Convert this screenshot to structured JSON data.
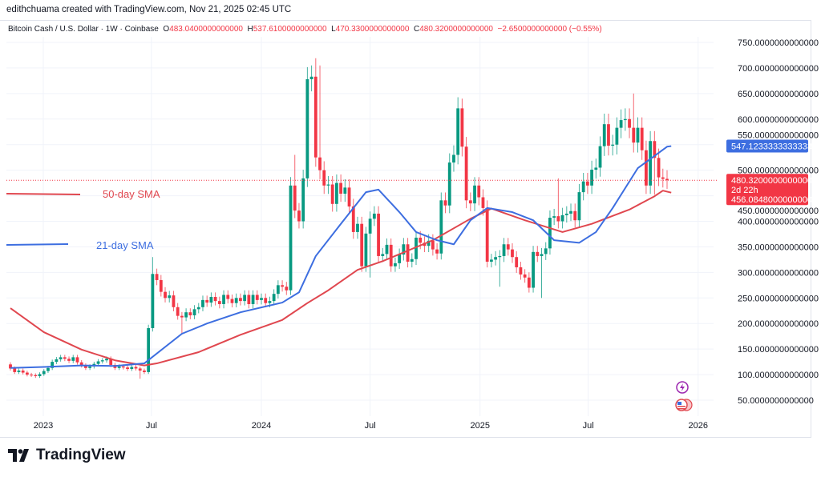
{
  "attribution": "edithchuama created with TradingView.com, Nov 21, 2025 02:45 UTC",
  "legend": {
    "symbol": "Bitcoin Cash / U.S. Dollar · 1W · Coinbase",
    "o_label": "O",
    "open": "483.0400000000000",
    "h_label": "H",
    "high": "537.6100000000000",
    "l_label": "L",
    "low": "470.3300000000000",
    "c_label": "C",
    "close": "480.3200000000000",
    "change": "−2.6500000000000 (−0.55%)"
  },
  "annotations": {
    "sma50": "50-day SMA",
    "sma21": "21-day SMA"
  },
  "price_labels": {
    "sma21": "547.1233333333333",
    "last": "480.3200000000000",
    "countdown": "2d 22h",
    "sma50": "456.0848000000000"
  },
  "logo": "TradingView",
  "colors": {
    "up": "#089981",
    "down": "#f23645",
    "sma50": "#e0474f",
    "sma21": "#3d6ee0",
    "grid": "#f0f3fa"
  },
  "icons": [
    "lightning-event-icon",
    "us-flag-event-icon",
    "tradingview-logo-icon"
  ],
  "chart_data": {
    "type": "candlestick",
    "title": "Bitcoin Cash / U.S. Dollar · 1W · Coinbase",
    "interval": "1W",
    "first_candle": "2022-11-07",
    "first_open": 120,
    "close": [
      112,
      105,
      108,
      104,
      100,
      99,
      97,
      101,
      107,
      113,
      125,
      130,
      134,
      131,
      127,
      134,
      124,
      118,
      113,
      116,
      121,
      126,
      128,
      131,
      119,
      113,
      116,
      114,
      111,
      115,
      112,
      108,
      105,
      191,
      297,
      285,
      262,
      250,
      255,
      232,
      215,
      212,
      222,
      216,
      228,
      232,
      246,
      241,
      252,
      244,
      238,
      256,
      248,
      240,
      250,
      244,
      256,
      238,
      256,
      246,
      250,
      240,
      244,
      258,
      275,
      272,
      265,
      470,
      421,
      400,
      484,
      678,
      683,
      525,
      500,
      470,
      472,
      434,
      475,
      454,
      466,
      429,
      379,
      395,
      312,
      376,
      405,
      415,
      332,
      336,
      354,
      312,
      318,
      335,
      355,
      321,
      326,
      368,
      358,
      352,
      362,
      345,
      337,
      441,
      431,
      515,
      530,
      621,
      546,
      441,
      435,
      470,
      447,
      426,
      321,
      325,
      330,
      332,
      355,
      345,
      330,
      310,
      296,
      290,
      270,
      340,
      332,
      336,
      347,
      407,
      410,
      400,
      412,
      415,
      420,
      402,
      457,
      478,
      470,
      501,
      505,
      547,
      590,
      548,
      550,
      583,
      598,
      600,
      583,
      554,
      583,
      539,
      470,
      557,
      524,
      486,
      483.04,
      480.32
    ],
    "wick_highs": {
      "2023-07-03": 330,
      "2024-02-26": 530,
      "2024-03-25": 705,
      "2024-04-01": 719,
      "2024-04-08": 705,
      "2024-12-02": 640,
      "2025-05-12": 484,
      "2025-09-15": 650,
      "2025-11-17": 537.61
    },
    "wick_lows": {
      "2023-06-12": 92,
      "2023-08-21": 180,
      "2024-07-01": 290,
      "2025-02-03": 272,
      "2025-04-14": 250,
      "2025-10-20": 452,
      "2025-11-17": 470.33
    },
    "sma50": [
      [
        "2022-11-07",
        230
      ],
      [
        "2023-01-02",
        183
      ],
      [
        "2023-03-06",
        149
      ],
      [
        "2023-05-01",
        128
      ],
      [
        "2023-06-19",
        118
      ],
      [
        "2023-07-10",
        122
      ],
      [
        "2023-09-18",
        144
      ],
      [
        "2023-11-27",
        178
      ],
      [
        "2024-02-05",
        207
      ],
      [
        "2024-03-18",
        240
      ],
      [
        "2024-04-22",
        265
      ],
      [
        "2024-06-10",
        305
      ],
      [
        "2024-07-22",
        322
      ],
      [
        "2024-10-14",
        363
      ],
      [
        "2024-12-16",
        405
      ],
      [
        "2025-01-20",
        425
      ],
      [
        "2025-03-17",
        402
      ],
      [
        "2025-05-19",
        379
      ],
      [
        "2025-07-07",
        395
      ],
      [
        "2025-09-08",
        423
      ],
      [
        "2025-10-20",
        449
      ],
      [
        "2025-11-03",
        460
      ],
      [
        "2025-11-17",
        456.08
      ]
    ],
    "sma21": [
      [
        "2022-11-07",
        113
      ],
      [
        "2023-01-02",
        115
      ],
      [
        "2023-03-06",
        118
      ],
      [
        "2023-05-01",
        117
      ],
      [
        "2023-06-19",
        122
      ],
      [
        "2023-08-21",
        180
      ],
      [
        "2023-10-02",
        200
      ],
      [
        "2023-11-27",
        222
      ],
      [
        "2024-02-05",
        241
      ],
      [
        "2024-03-04",
        261
      ],
      [
        "2024-04-01",
        332
      ],
      [
        "2024-05-13",
        395
      ],
      [
        "2024-06-24",
        457
      ],
      [
        "2024-07-15",
        462
      ],
      [
        "2024-08-19",
        418
      ],
      [
        "2024-09-16",
        379
      ],
      [
        "2024-10-21",
        363
      ],
      [
        "2024-11-18",
        355
      ],
      [
        "2024-12-16",
        402
      ],
      [
        "2025-01-13",
        426
      ],
      [
        "2025-02-24",
        418
      ],
      [
        "2025-03-31",
        402
      ],
      [
        "2025-05-05",
        363
      ],
      [
        "2025-06-16",
        358
      ],
      [
        "2025-07-14",
        379
      ],
      [
        "2025-08-11",
        426
      ],
      [
        "2025-09-22",
        504
      ],
      [
        "2025-10-20",
        528
      ],
      [
        "2025-11-10",
        546
      ],
      [
        "2025-11-17",
        547.12
      ]
    ],
    "y_ticks": [
      "750.0000000000000",
      "700.0000000000000",
      "650.0000000000000",
      "600.0000000000000",
      "550.0000000000000",
      "500.0000000000000",
      "450.0000000000000",
      "400.0000000000000",
      "350.0000000000000",
      "300.0000000000000",
      "250.0000000000000",
      "200.0000000000000",
      "150.0000000000000",
      "100.0000000000000",
      "50.0000000000000"
    ],
    "y_tick_values": [
      750,
      700,
      650,
      600,
      550,
      500,
      450,
      400,
      350,
      300,
      250,
      200,
      150,
      100,
      50
    ],
    "x_ticks": [
      [
        "2023",
        "2023-01-01"
      ],
      [
        "Jul",
        "2023-07-01"
      ],
      [
        "2024",
        "2024-01-01"
      ],
      [
        "Jul",
        "2024-07-01"
      ],
      [
        "2025",
        "2025-01-01"
      ],
      [
        "Jul",
        "2025-07-01"
      ],
      [
        "2026",
        "2026-01-01"
      ]
    ],
    "ylim": [
      30,
      770
    ],
    "grid": true,
    "scale": "linear"
  }
}
